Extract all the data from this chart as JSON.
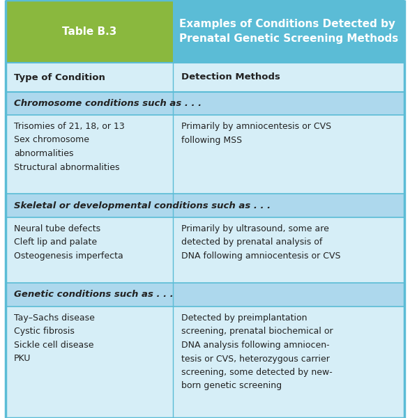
{
  "title_left": "Table B.3",
  "title_right": "Examples of Conditions Detected by\nPrenatal Genetic Screening Methods",
  "header_left": "Type of Condition",
  "header_right": "Detection Methods",
  "green_color": "#8ab83e",
  "blue_color": "#5bbcd6",
  "light_blue_bg": "#d6eef7",
  "section_bg": "#add8ed",
  "border_color": "#5bbcd6",
  "text_color": "#222222",
  "sections": [
    {
      "section_label": "Chromosome conditions such as . . .",
      "left_items": [
        "Trisomies of 21, 18, or 13",
        "Sex chromosome\nabnormalities",
        "Structural abnormalities"
      ],
      "right_text": "Primarily by amniocentesis or CVS\nfollowing MSS"
    },
    {
      "section_label": "Skeletal or developmental conditions such as . . .",
      "left_items": [
        "Neural tube defects",
        "Cleft lip and palate",
        "Osteogenesis imperfecta"
      ],
      "right_text": "Primarily by ultrasound, some are\ndetected by prenatal analysis of\nDNA following amniocentesis or CVS"
    },
    {
      "section_label": "Genetic conditions such as . . .",
      "left_items": [
        "Tay–Sachs disease",
        "Cystic fibrosis",
        "Sickle cell disease",
        "PKU"
      ],
      "right_text": "Detected by preimplantation\nscreening, prenatal biochemical or\nDNA analysis following amniocen-\ntesis or CVS, heterozygous carrier\nscreening, some detected by new-\nborn genetic screening"
    }
  ],
  "figwidth": 5.88,
  "figheight": 6.0,
  "dpi": 100
}
